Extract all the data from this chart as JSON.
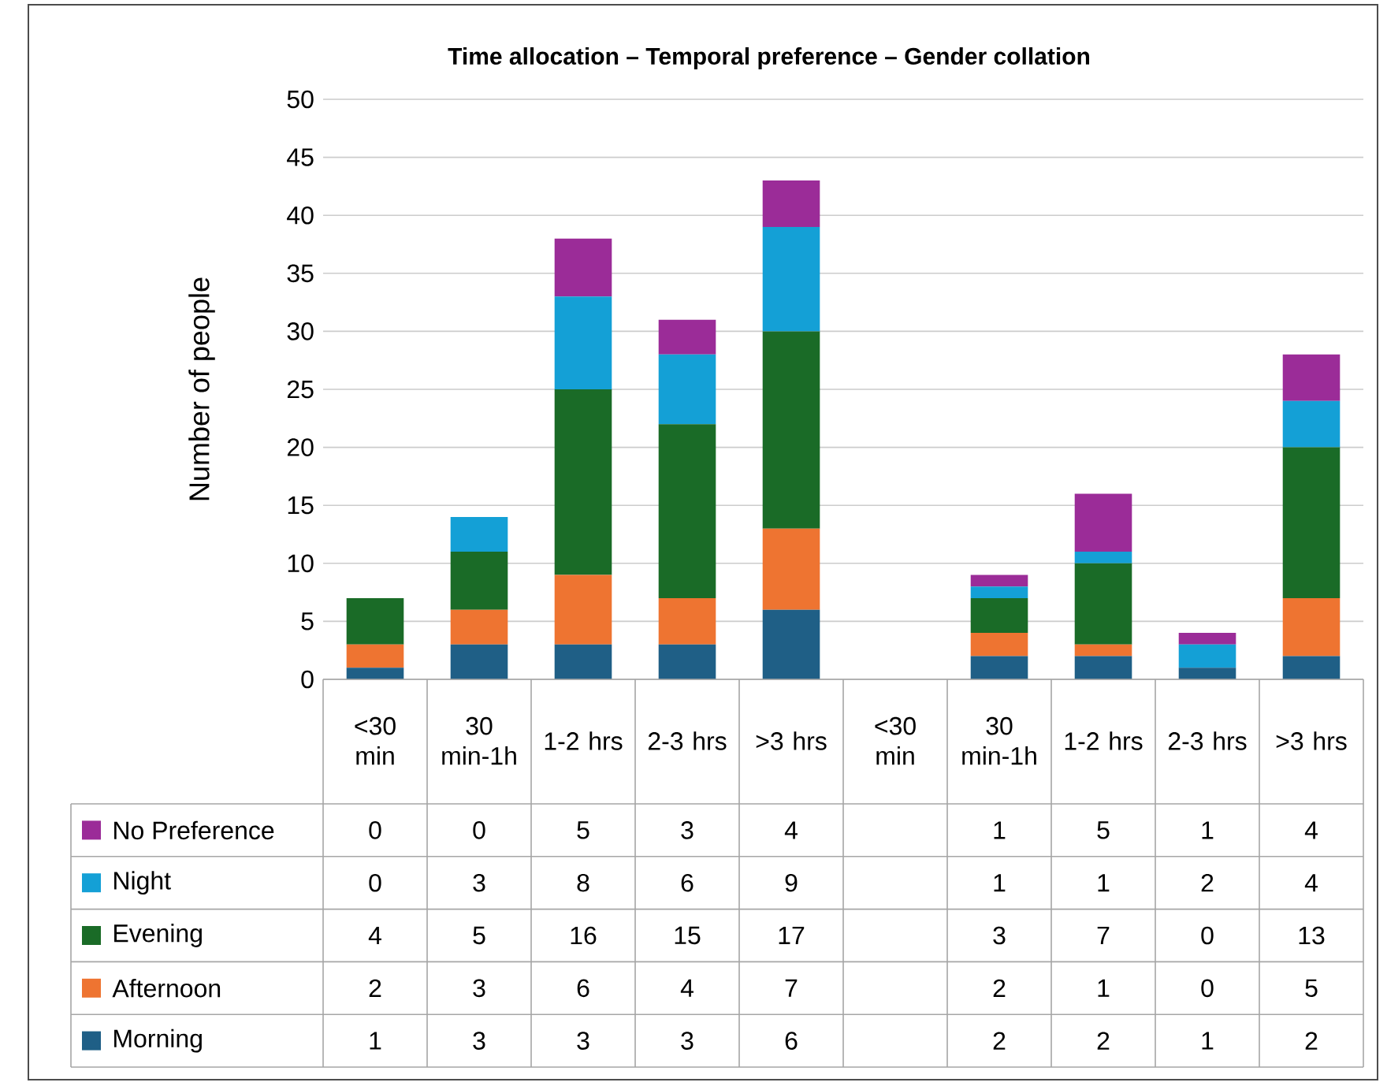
{
  "chart_data": {
    "type": "bar",
    "stacked": true,
    "title": "Time allocation – Temporal preference – Gender collation",
    "ylabel": "Number of people",
    "categories": [
      "<30 min",
      "30 min-1h",
      "1-2 hrs",
      "2-3 hrs",
      ">3 hrs",
      "<30 min",
      "30 min-1h",
      "1-2 hrs",
      "2-3 hrs",
      ">3 hrs"
    ],
    "series": [
      {
        "name": "Morning",
        "color": "#1f5f86",
        "values": [
          1,
          3,
          3,
          3,
          6,
          null,
          2,
          2,
          1,
          2
        ]
      },
      {
        "name": "Afternoon",
        "color": "#ee7431",
        "values": [
          2,
          3,
          6,
          4,
          7,
          null,
          2,
          1,
          0,
          5
        ]
      },
      {
        "name": "Evening",
        "color": "#1a6b27",
        "values": [
          4,
          5,
          16,
          15,
          17,
          null,
          3,
          7,
          0,
          13
        ]
      },
      {
        "name": "Night",
        "color": "#14a0d6",
        "values": [
          0,
          3,
          8,
          6,
          9,
          null,
          1,
          1,
          2,
          4
        ]
      },
      {
        "name": "No Preference",
        "color": "#9b2c98",
        "values": [
          0,
          0,
          5,
          3,
          4,
          null,
          1,
          5,
          1,
          4
        ]
      }
    ],
    "ylim": [
      0,
      50
    ],
    "yticks": [
      0,
      5,
      10,
      15,
      20,
      25,
      30,
      35,
      40,
      45,
      50
    ],
    "grid": "y",
    "legend": "bottom",
    "data_labels": true
  }
}
